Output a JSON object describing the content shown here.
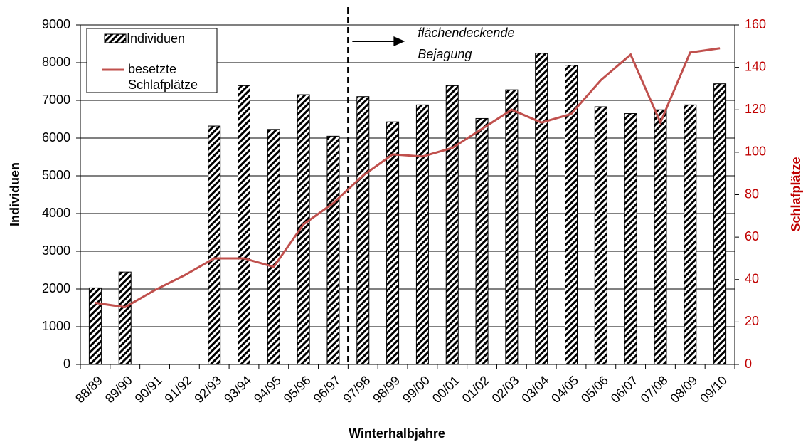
{
  "chart_data": {
    "type": "bar-line",
    "x_label": "Winterhalbjahre",
    "y_label": "Individuen",
    "y2_label": "Schlafplätze",
    "categories": [
      "88/89",
      "89/90",
      "90/91",
      "91/92",
      "92/93",
      "93/94",
      "94/95",
      "95/96",
      "96/97",
      "97/98",
      "98/99",
      "99/00",
      "00/01",
      "01/02",
      "02/03",
      "03/04",
      "04/05",
      "05/06",
      "06/07",
      "07/08",
      "08/09",
      "09/10"
    ],
    "series": [
      {
        "name": "Individuen",
        "type": "bar",
        "color": "#000000",
        "values": [
          2030,
          2450,
          null,
          null,
          6320,
          7390,
          6230,
          7150,
          6050,
          7100,
          6430,
          6880,
          7390,
          6520,
          7280,
          8250,
          7930,
          6830,
          6650,
          6750,
          6880,
          7440
        ]
      },
      {
        "name": "besetzte Schlafplätze",
        "type": "line",
        "axis": "y2",
        "color": "#c0504d",
        "values": [
          29,
          27,
          35,
          42,
          50,
          50,
          46,
          66,
          76,
          89,
          99,
          98,
          102,
          111,
          120,
          114,
          118,
          134,
          146,
          114,
          147,
          149
        ]
      }
    ],
    "annotation": [
      "flächendeckende",
      "Bejagung"
    ],
    "ylim": [
      0,
      9000
    ],
    "yticks": [
      0,
      1000,
      2000,
      3000,
      4000,
      5000,
      6000,
      7000,
      8000,
      9000
    ],
    "y2lim": [
      0,
      160
    ],
    "y2ticks": [
      0,
      20,
      40,
      60,
      80,
      100,
      120,
      140,
      160
    ],
    "grid": true
  }
}
